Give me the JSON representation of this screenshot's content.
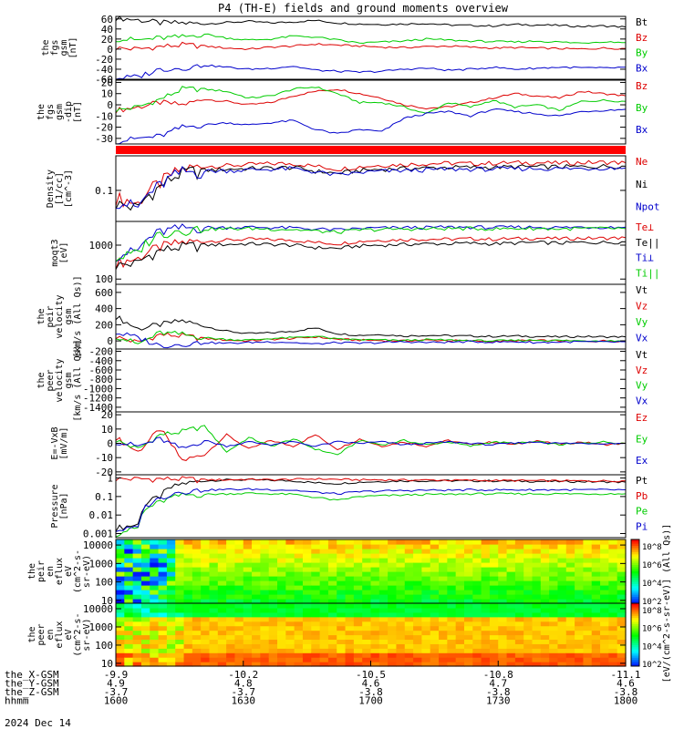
{
  "title": "P4 (TH-E) fields and ground moments overview",
  "date_label": "2024 Dec 14",
  "orbit_rows": [
    {
      "label": "the_X-GSM",
      "values": [
        "-9.9",
        "-10.2",
        "-10.5",
        "-10.8",
        "-11.1"
      ]
    },
    {
      "label": "the_Y-GSM",
      "values": [
        "4.9",
        "4.8",
        "4.6",
        "4.7",
        "4.6"
      ]
    },
    {
      "label": "the_Z-GSM",
      "values": [
        "-3.7",
        "-3.7",
        "-3.8",
        "-3.8",
        "-3.8"
      ]
    },
    {
      "label": "hhmm",
      "values": [
        "1600",
        "1630",
        "1700",
        "1730",
        "1800"
      ]
    }
  ],
  "chart_data": [
    {
      "id": "fgs_gsm_top",
      "type": "line",
      "ylabel": [
        "the",
        "fgs",
        "gsm",
        "[nT]"
      ],
      "y_ticks": [
        60,
        40,
        20,
        0,
        -20,
        -40,
        -60
      ],
      "ylim": [
        -60,
        65
      ],
      "x_range_hhmm": [
        "1600",
        "1800"
      ],
      "series": [
        {
          "name": "Bt",
          "color": "#000000",
          "values": [
            62,
            58,
            52,
            52,
            50,
            53,
            55,
            52,
            54,
            57,
            52,
            50,
            49,
            50,
            51,
            48,
            47,
            46,
            49,
            48,
            47,
            45,
            46,
            44
          ]
        },
        {
          "name": "Bz",
          "color": "#dd0000",
          "values": [
            2,
            0,
            5,
            8,
            6,
            2,
            0,
            4,
            6,
            10,
            8,
            6,
            4,
            3,
            5,
            6,
            4,
            2,
            3,
            2,
            1,
            0,
            2,
            1
          ]
        },
        {
          "name": "By",
          "color": "#00cc00",
          "values": [
            20,
            18,
            22,
            24,
            30,
            22,
            18,
            20,
            26,
            24,
            18,
            12,
            14,
            16,
            20,
            18,
            16,
            15,
            14,
            16,
            14,
            12,
            15,
            13
          ]
        },
        {
          "name": "Bx",
          "color": "#0000cc",
          "values": [
            -58,
            -55,
            -40,
            -38,
            -32,
            -36,
            -40,
            -38,
            -34,
            -42,
            -44,
            -46,
            -44,
            -40,
            -38,
            -42,
            -40,
            -36,
            -40,
            -38,
            -36,
            -37,
            -38,
            -36
          ]
        }
      ]
    },
    {
      "id": "fgs_gsm_zoom",
      "type": "line",
      "ylabel": [
        "the",
        "fgs",
        "gsm",
        "-dip",
        "[nT]"
      ],
      "y_ticks": [
        20,
        10,
        0,
        -10,
        -20,
        -30
      ],
      "ylim": [
        -35,
        22
      ],
      "series": [
        {
          "name": "Bz",
          "color": "#dd0000",
          "values": [
            -5,
            -2,
            2,
            0,
            5,
            3,
            0,
            2,
            8,
            12,
            14,
            10,
            6,
            0,
            -3,
            -2,
            2,
            6,
            10,
            8,
            6,
            12,
            10,
            8
          ]
        },
        {
          "name": "By",
          "color": "#00cc00",
          "values": [
            -5,
            -2,
            5,
            14,
            14,
            12,
            6,
            8,
            14,
            16,
            10,
            2,
            2,
            -2,
            -8,
            2,
            -2,
            4,
            -2,
            0,
            -5,
            3,
            4,
            3
          ]
        },
        {
          "name": "Bx",
          "color": "#0000cc",
          "values": [
            -33,
            -30,
            -28,
            -20,
            -18,
            -16,
            -18,
            -16,
            -14,
            -22,
            -26,
            -22,
            -24,
            -12,
            -8,
            -6,
            -10,
            -4,
            -6,
            -8,
            -10,
            -6,
            -5,
            -4
          ]
        }
      ]
    },
    {
      "id": "density",
      "type": "line",
      "log": true,
      "ylabel": [
        "Density",
        "[1/cc]",
        "[cm^-3]"
      ],
      "y_ticks": [
        0.1
      ],
      "ylim": [
        0.02,
        0.6
      ],
      "series": [
        {
          "name": "Ne",
          "color": "#dd0000",
          "values": [
            0.07,
            0.05,
            0.15,
            0.3,
            0.35,
            0.36,
            0.38,
            0.4,
            0.4,
            0.35,
            0.3,
            0.34,
            0.37,
            0.38,
            0.4,
            0.41,
            0.4,
            0.41,
            0.42,
            0.42,
            0.41,
            0.42,
            0.43,
            0.42
          ]
        },
        {
          "name": "Ni",
          "color": "#000000",
          "values": [
            0.05,
            0.04,
            0.12,
            0.25,
            0.28,
            0.3,
            0.31,
            0.32,
            0.33,
            0.27,
            0.24,
            0.28,
            0.3,
            0.31,
            0.32,
            0.33,
            0.33,
            0.33,
            0.34,
            0.34,
            0.34,
            0.34,
            0.35,
            0.35
          ]
        },
        {
          "name": "Npot",
          "color": "#0000cc",
          "values": [
            0.06,
            0.04,
            0.13,
            0.26,
            0.27,
            0.28,
            0.29,
            0.3,
            0.31,
            0.26,
            0.22,
            0.25,
            0.27,
            0.28,
            0.29,
            0.3,
            0.3,
            0.3,
            0.31,
            0.31,
            0.31,
            0.31,
            0.32,
            0.32
          ]
        }
      ]
    },
    {
      "id": "temperature",
      "type": "line",
      "log": true,
      "ylabel": [
        "moqt3",
        "[eV]"
      ],
      "y_ticks": [
        1000,
        100
      ],
      "ylim": [
        70,
        5000
      ],
      "series": [
        {
          "name": "Te⊥",
          "color": "#dd0000",
          "values": [
            300,
            400,
            900,
            1200,
            1300,
            1400,
            1500,
            1450,
            1400,
            1200,
            1100,
            1300,
            1400,
            1450,
            1500,
            1500,
            1550,
            1500,
            1550,
            1600,
            1550,
            1600,
            1600,
            1650
          ]
        },
        {
          "name": "Te||",
          "color": "#000000",
          "values": [
            250,
            300,
            700,
            900,
            1000,
            1050,
            1100,
            1050,
            1000,
            850,
            800,
            950,
            1000,
            1050,
            1100,
            1100,
            1150,
            1100,
            1150,
            1200,
            1150,
            1200,
            1200,
            1250
          ]
        },
        {
          "name": "Ti⊥",
          "color": "#0000cc",
          "values": [
            500,
            700,
            2500,
            3200,
            3300,
            3300,
            3400,
            3300,
            3200,
            3000,
            2800,
            3100,
            3200,
            3300,
            3300,
            3400,
            3400,
            3300,
            3400,
            3400,
            3300,
            3400,
            3400,
            3400
          ]
        },
        {
          "name": "Ti||",
          "color": "#00cc00",
          "values": [
            400,
            600,
            2200,
            2900,
            3000,
            3000,
            3100,
            3000,
            2900,
            2600,
            2400,
            2800,
            2900,
            3000,
            3000,
            3100,
            3100,
            3000,
            3100,
            3100,
            3000,
            3100,
            3100,
            3100
          ]
        }
      ]
    },
    {
      "id": "peir_velocity",
      "type": "line",
      "ylabel": [
        "the",
        "peir",
        "velocity",
        "gsm",
        "[km/s (All Qs)]"
      ],
      "y_ticks": [
        600,
        400,
        200,
        0
      ],
      "ylim": [
        -100,
        700
      ],
      "series": [
        {
          "name": "Vt",
          "color": "#000000",
          "values": [
            300,
            150,
            200,
            250,
            180,
            120,
            90,
            100,
            120,
            160,
            90,
            70,
            80,
            60,
            70,
            65,
            60,
            55,
            60,
            55,
            50,
            55,
            50,
            50
          ]
        },
        {
          "name": "Vz",
          "color": "#dd0000",
          "values": [
            50,
            -20,
            80,
            60,
            30,
            10,
            0,
            20,
            30,
            50,
            20,
            10,
            5,
            0,
            10,
            5,
            0,
            -5,
            0,
            5,
            0,
            -5,
            0,
            0
          ]
        },
        {
          "name": "Vy",
          "color": "#00cc00",
          "values": [
            60,
            -40,
            100,
            80,
            40,
            20,
            10,
            30,
            40,
            60,
            20,
            15,
            10,
            5,
            15,
            10,
            5,
            0,
            5,
            10,
            5,
            0,
            5,
            0
          ]
        },
        {
          "name": "Vx",
          "color": "#0000cc",
          "values": [
            100,
            40,
            -60,
            -40,
            -20,
            -30,
            -20,
            -10,
            -20,
            -40,
            -20,
            -30,
            -20,
            -10,
            -20,
            -15,
            -10,
            -15,
            -10,
            -20,
            -15,
            -10,
            -15,
            -10
          ]
        }
      ]
    },
    {
      "id": "peer_velocity",
      "type": "line",
      "ylabel": [
        "the",
        "peer",
        "velocity",
        "gsm",
        "[km/s (All Qs)]"
      ],
      "y_ticks": [
        -200,
        -400,
        -600,
        -800,
        -1000,
        -1200,
        -1400
      ],
      "ylim": [
        -1500,
        -150
      ],
      "series": [
        {
          "name": "Vt",
          "color": "#000000",
          "values": []
        },
        {
          "name": "Vz",
          "color": "#dd0000",
          "values": []
        },
        {
          "name": "Vy",
          "color": "#00cc00",
          "values": []
        },
        {
          "name": "Vx",
          "color": "#0000cc",
          "values": []
        }
      ]
    },
    {
      "id": "efield",
      "type": "line",
      "ylabel": [
        "E=-VxB",
        "[mV/m]"
      ],
      "y_ticks": [
        20,
        10,
        0,
        -10,
        -20
      ],
      "ylim": [
        -22,
        22
      ],
      "series": [
        {
          "name": "Ez",
          "color": "#dd0000",
          "values": [
            4,
            -6,
            10,
            -12,
            -8,
            6,
            -4,
            2,
            -2,
            6,
            -4,
            3,
            -2,
            1,
            -2,
            2,
            -1,
            1,
            -1,
            2,
            -1,
            1,
            -1,
            0
          ]
        },
        {
          "name": "Ey",
          "color": "#00cc00",
          "values": [
            2,
            -4,
            6,
            8,
            12,
            -6,
            4,
            -2,
            3,
            -4,
            -8,
            2,
            -1,
            2,
            -1,
            1,
            -2,
            1,
            0,
            1,
            -1,
            0,
            1,
            0
          ]
        },
        {
          "name": "Ex",
          "color": "#0000cc",
          "values": [
            1,
            -2,
            3,
            -4,
            2,
            -2,
            1,
            -1,
            1,
            -2,
            1,
            0,
            1,
            -1,
            0,
            1,
            0,
            -1,
            0,
            1,
            0,
            0,
            0,
            0
          ]
        }
      ]
    },
    {
      "id": "pressure",
      "type": "line",
      "log": true,
      "ylabel": [
        "Pressure",
        "[nPa]"
      ],
      "y_ticks": [
        1.0,
        0.1,
        0.01,
        0.001
      ],
      "ylim": [
        0.0006,
        1.5
      ],
      "series": [
        {
          "name": "Pt",
          "color": "#000000",
          "values": [
            0.002,
            0.003,
            0.1,
            0.5,
            0.7,
            0.8,
            0.8,
            0.75,
            0.7,
            0.55,
            0.5,
            0.6,
            0.65,
            0.7,
            0.7,
            0.72,
            0.7,
            0.7,
            0.68,
            0.66,
            0.65,
            0.64,
            0.62,
            0.6
          ]
        },
        {
          "name": "Pb",
          "color": "#dd0000",
          "values": [
            0.9,
            0.9,
            0.9,
            0.9,
            0.8,
            0.8,
            0.85,
            0.8,
            0.85,
            0.9,
            0.85,
            0.8,
            0.8,
            0.78,
            0.78,
            0.76,
            0.75,
            0.74,
            0.73,
            0.72,
            0.71,
            0.7,
            0.7,
            0.7
          ]
        },
        {
          "name": "Pe",
          "color": "#00cc00",
          "values": [
            0.001,
            0.002,
            0.05,
            0.12,
            0.13,
            0.14,
            0.15,
            0.14,
            0.13,
            0.09,
            0.06,
            0.1,
            0.11,
            0.12,
            0.13,
            0.13,
            0.14,
            0.14,
            0.14,
            0.14,
            0.14,
            0.14,
            0.14,
            0.14
          ]
        },
        {
          "name": "Pi",
          "color": "#0000cc",
          "values": [
            0.0015,
            0.002,
            0.08,
            0.2,
            0.22,
            0.24,
            0.25,
            0.24,
            0.22,
            0.17,
            0.14,
            0.18,
            0.2,
            0.21,
            0.22,
            0.22,
            0.23,
            0.23,
            0.23,
            0.23,
            0.23,
            0.23,
            0.23,
            0.23
          ]
        }
      ]
    },
    {
      "id": "peir_eflux",
      "type": "heatmap",
      "ylabel": [
        "the",
        "peir",
        "en",
        "eflux",
        "eV",
        "(cm^2-s-",
        "sr-eV)"
      ],
      "y_ticks": [
        10000,
        1000,
        100,
        10
      ],
      "ylim": [
        7,
        20000
      ]
    },
    {
      "id": "peer_eflux",
      "type": "heatmap",
      "ylabel": [
        "the",
        "peer",
        "en",
        "eflux",
        "eV",
        "(cm^2-s-",
        "sr-eV)"
      ],
      "y_ticks": [
        10000,
        1000,
        100,
        10
      ],
      "ylim": [
        7,
        20000
      ]
    }
  ],
  "colorbar": {
    "label": "[eV/(cm^2-s-sr-eV)] (All Qs)]",
    "ticks": [
      "10^8",
      "10^6",
      "10^4",
      "10^2"
    ]
  }
}
